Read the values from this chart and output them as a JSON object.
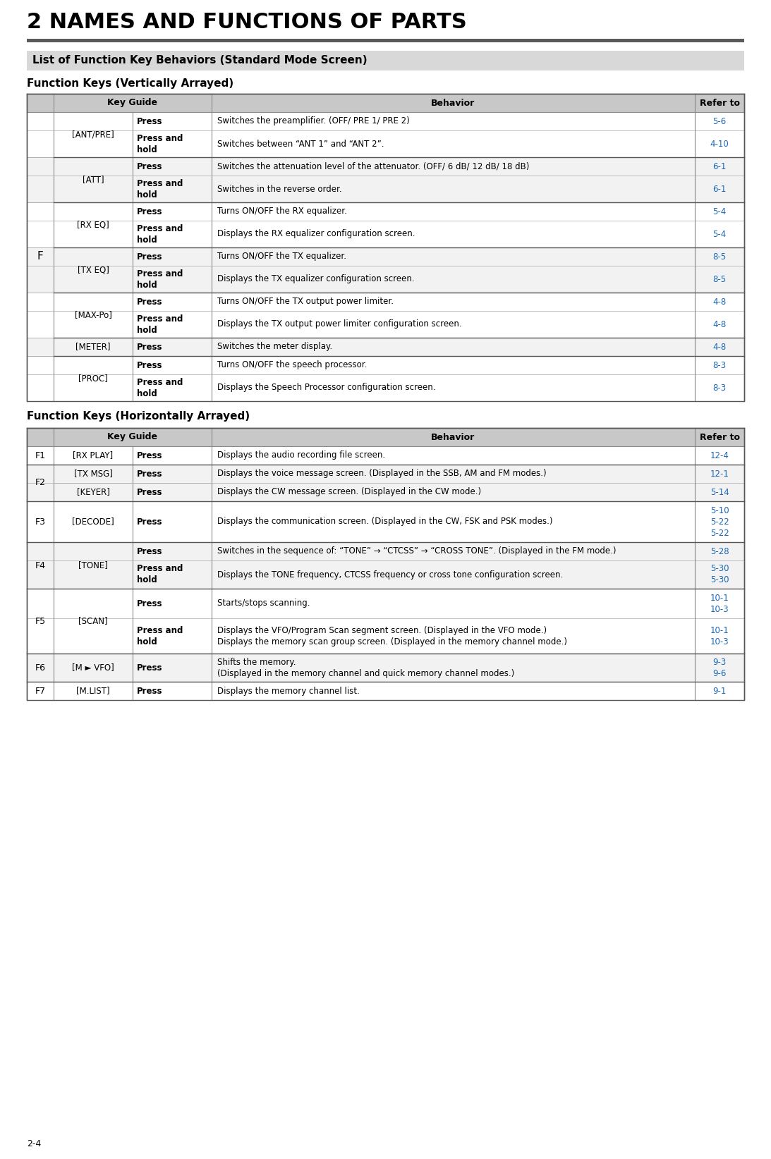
{
  "page_title": "2 NAMES AND FUNCTIONS OF PARTS",
  "section_title": "List of Function Key Behaviors (Standard Mode Screen)",
  "subsection1": "Function Keys (Vertically Arrayed)",
  "subsection2": "Function Keys (Horizontally Arrayed)",
  "footer": "2-4",
  "bg_color": "#ffffff",
  "header_bg": "#c8c8c8",
  "section_bg": "#d8d8d8",
  "row_alt_bg": "#f2f2f2",
  "row_white": "#ffffff",
  "blue_color": "#1a66b5",
  "header_bar_color": "#6a6a6a",
  "vtable_rows": [
    {
      "key": "[ANT/PRE]",
      "action": "Press",
      "behavior": "Switches the preamplifier. (OFF/ PRE 1/ PRE 2)",
      "refer": "5-6",
      "bg": "#ffffff",
      "group": 1
    },
    {
      "key": "[ANT/PRE]",
      "action": "Press and\nhold",
      "behavior": "Switches between “ANT 1” and “ANT 2”.",
      "refer": "4-10",
      "bg": "#ffffff",
      "group": 1
    },
    {
      "key": "[ATT]",
      "action": "Press",
      "behavior": "Switches the attenuation level of the attenuator. (OFF/ 6 dB/ 12 dB/ 18 dB)",
      "refer": "6-1",
      "bg": "#f2f2f2",
      "group": 2
    },
    {
      "key": "[ATT]",
      "action": "Press and\nhold",
      "behavior": "Switches in the reverse order.",
      "refer": "6-1",
      "bg": "#f2f2f2",
      "group": 2
    },
    {
      "key": "[RX EQ]",
      "action": "Press",
      "behavior": "Turns ON/OFF the RX equalizer.",
      "refer": "5-4",
      "bg": "#ffffff",
      "group": 3
    },
    {
      "key": "[RX EQ]",
      "action": "Press and\nhold",
      "behavior": "Displays the RX equalizer configuration screen.",
      "refer": "5-4",
      "bg": "#ffffff",
      "group": 3
    },
    {
      "key": "[TX EQ]",
      "action": "Press",
      "behavior": "Turns ON/OFF the TX equalizer.",
      "refer": "8-5",
      "bg": "#f2f2f2",
      "group": 4
    },
    {
      "key": "[TX EQ]",
      "action": "Press and\nhold",
      "behavior": "Displays the TX equalizer configuration screen.",
      "refer": "8-5",
      "bg": "#f2f2f2",
      "group": 4
    },
    {
      "key": "[MAX-Po]",
      "action": "Press",
      "behavior": "Turns ON/OFF the TX output power limiter.",
      "refer": "4-8",
      "bg": "#ffffff",
      "group": 5
    },
    {
      "key": "[MAX-Po]",
      "action": "Press and\nhold",
      "behavior": "Displays the TX output power limiter configuration screen.",
      "refer": "4-8",
      "bg": "#ffffff",
      "group": 5
    },
    {
      "key": "[METER]",
      "action": "Press",
      "behavior": "Switches the meter display.",
      "refer": "4-8",
      "bg": "#f2f2f2",
      "group": 6
    },
    {
      "key": "[PROC]",
      "action": "Press",
      "behavior": "Turns ON/OFF the speech processor.",
      "refer": "8-3",
      "bg": "#ffffff",
      "group": 7
    },
    {
      "key": "[PROC]",
      "action": "Press and\nhold",
      "behavior": "Displays the Speech Processor configuration screen.",
      "refer": "8-3",
      "bg": "#ffffff",
      "group": 7
    }
  ],
  "vrow_heights": [
    26,
    38,
    26,
    38,
    26,
    38,
    26,
    38,
    26,
    38,
    26,
    26,
    38
  ],
  "vgroups": {
    "[ANT/PRE]": [
      0,
      1
    ],
    "[ATT]": [
      2,
      3
    ],
    "[RX EQ]": [
      4,
      5
    ],
    "[TX EQ]": [
      6,
      7
    ],
    "[MAX-Po]": [
      8,
      9
    ],
    "[METER]": [
      10
    ],
    "[PROC]": [
      11,
      12
    ]
  },
  "htable_rows": [
    {
      "fn": "F1",
      "key": "[RX PLAY]",
      "action": "Press",
      "behavior": "Displays the audio recording file screen.",
      "refer": "12-4",
      "bg": "#ffffff",
      "group": 1
    },
    {
      "fn": "F2",
      "key": "[TX MSG]",
      "action": "Press",
      "behavior": "Displays the voice message screen. (Displayed in the SSB, AM and FM modes.)",
      "refer": "12-1",
      "bg": "#f2f2f2",
      "group": 2
    },
    {
      "fn": "F2",
      "key": "[KEYER]",
      "action": "Press",
      "behavior": "Displays the CW message screen. (Displayed in the CW mode.)",
      "refer": "5-14",
      "bg": "#f2f2f2",
      "group": 2
    },
    {
      "fn": "F3",
      "key": "[DECODE]",
      "action": "Press",
      "behavior": "Displays the communication screen. (Displayed in the CW, FSK and PSK modes.)",
      "refer": "5-10\n5-22\n5-22",
      "bg": "#ffffff",
      "group": 3
    },
    {
      "fn": "F4",
      "key": "[TONE]",
      "action": "Press",
      "behavior": "Switches in the sequence of: “TONE” → “CTCSS” → “CROSS TONE”. (Displayed in the FM mode.)",
      "refer": "5-28",
      "bg": "#f2f2f2",
      "group": 4
    },
    {
      "fn": "F4",
      "key": "[TONE]",
      "action": "Press and\nhold",
      "behavior": "Displays the TONE frequency, CTCSS frequency or cross tone configuration screen.",
      "refer": "5-30\n5-30",
      "bg": "#f2f2f2",
      "group": 4
    },
    {
      "fn": "F5",
      "key": "[SCAN]",
      "action": "Press",
      "behavior": "Starts/stops scanning.",
      "refer": "10-1\n10-3",
      "bg": "#ffffff",
      "group": 5
    },
    {
      "fn": "F5",
      "key": "[SCAN]",
      "action": "Press and\nhold",
      "behavior": "Displays the VFO/Program Scan segment screen. (Displayed in the VFO mode.)\nDisplays the memory scan group screen. (Displayed in the memory channel mode.)",
      "refer": "10-1\n10-3",
      "bg": "#ffffff",
      "group": 5
    },
    {
      "fn": "F6",
      "key": "[M ► VFO]",
      "action": "Press",
      "behavior": "Shifts the memory.\n(Displayed in the memory channel and quick memory channel modes.)",
      "refer": "9-3\n9-6",
      "bg": "#f2f2f2",
      "group": 6
    },
    {
      "fn": "F7",
      "key": "[M.LIST]",
      "action": "Press",
      "behavior": "Displays the memory channel list.",
      "refer": "9-1",
      "bg": "#ffffff",
      "group": 7
    }
  ],
  "hrow_heights": [
    26,
    26,
    26,
    58,
    26,
    40,
    42,
    50,
    40,
    26
  ]
}
